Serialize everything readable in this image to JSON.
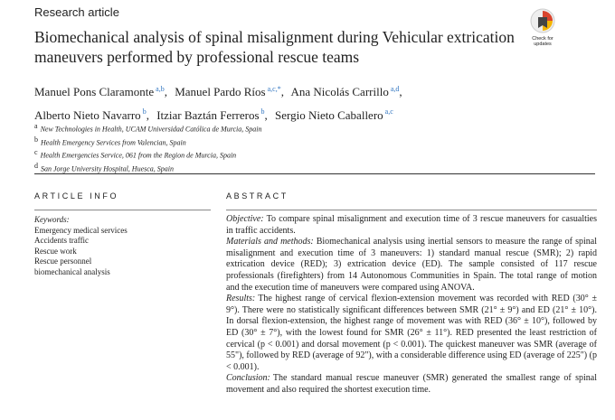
{
  "header": {
    "label": "Research article",
    "badge": "Check for updates"
  },
  "title": "Biomechanical analysis of spinal misalignment during Vehicular extrication maneuvers performed by professional rescue teams",
  "authors": [
    {
      "name": "Manuel Pons Claramonte",
      "sup": "a,b",
      "sep": ","
    },
    {
      "name": "Manuel Pardo Ríos",
      "sup": "a,c,*",
      "sep": ","
    },
    {
      "name": "Ana Nicolás Carrillo",
      "sup": "a,d",
      "sep": ","
    },
    {
      "name": "Alberto Nieto Navarro",
      "sup": "b",
      "sep": ","
    },
    {
      "name": "Itziar Baztán Ferreros",
      "sup": "b",
      "sep": ","
    },
    {
      "name": "Sergio Nieto Caballero",
      "sup": "a,c"
    }
  ],
  "affiliations": [
    {
      "mark": "a",
      "text": "New Technologies in Health, UCAM Universidad Católica de Murcia, Spain"
    },
    {
      "mark": "b",
      "text": "Health Emergency Services from Valencian, Spain"
    },
    {
      "mark": "c",
      "text": "Health Emergencies Service, 061 from the Region de Murcia, Spain"
    },
    {
      "mark": "d",
      "text": "San Jorge University Hospital, Huesca, Spain"
    }
  ],
  "article_info": {
    "heading": "ARTICLE INFO",
    "keywords_label": "Keywords:",
    "keywords": [
      "Emergency medical services",
      "Accidents traffic",
      "Rescue work",
      "Rescue personnel",
      "biomechanical analysis"
    ]
  },
  "abstract": {
    "heading": "ABSTRACT",
    "sections": [
      {
        "label": "Objective:",
        "text": "To compare spinal misalignment and execution time of 3 rescue maneuvers for casualties in traffic accidents."
      },
      {
        "label": "Materials and methods:",
        "text": "Biomechanical analysis using inertial sensors to measure the range of spinal misalignment and execution time of 3 maneuvers: 1) standard manual rescue (SMR); 2) rapid extrication device (RED); 3) extrication device (ED). The sample consisted of 117 rescue professionals (firefighters) from 14 Autonomous Communities in Spain. The total range of motion and the execution time of maneuvers were compared using ANOVA."
      },
      {
        "label": "Results:",
        "text": "The highest range of cervical flexion-extension movement was recorded with RED (30° ± 9°). There were no statistically significant differences between SMR (21° ± 9°) and ED (21° ± 10°). In dorsal flexion-extension, the highest range of movement was with RED (36° ± 10°), followed by ED (30° ± 7°), with the lowest found for SMR (26° ± 11°). RED presented the least restriction of cervical (p < 0.001) and dorsal movement (p < 0.001). The quickest maneuver was SMR (average of 55\"), followed by RED (average of 92\"), with a considerable difference using ED (average of 225\") (p < 0.001)."
      },
      {
        "label": "Conclusion:",
        "text": "The standard manual rescue maneuver (SMR) generated the smallest range of spinal movement and also required the shortest execution time."
      }
    ]
  }
}
